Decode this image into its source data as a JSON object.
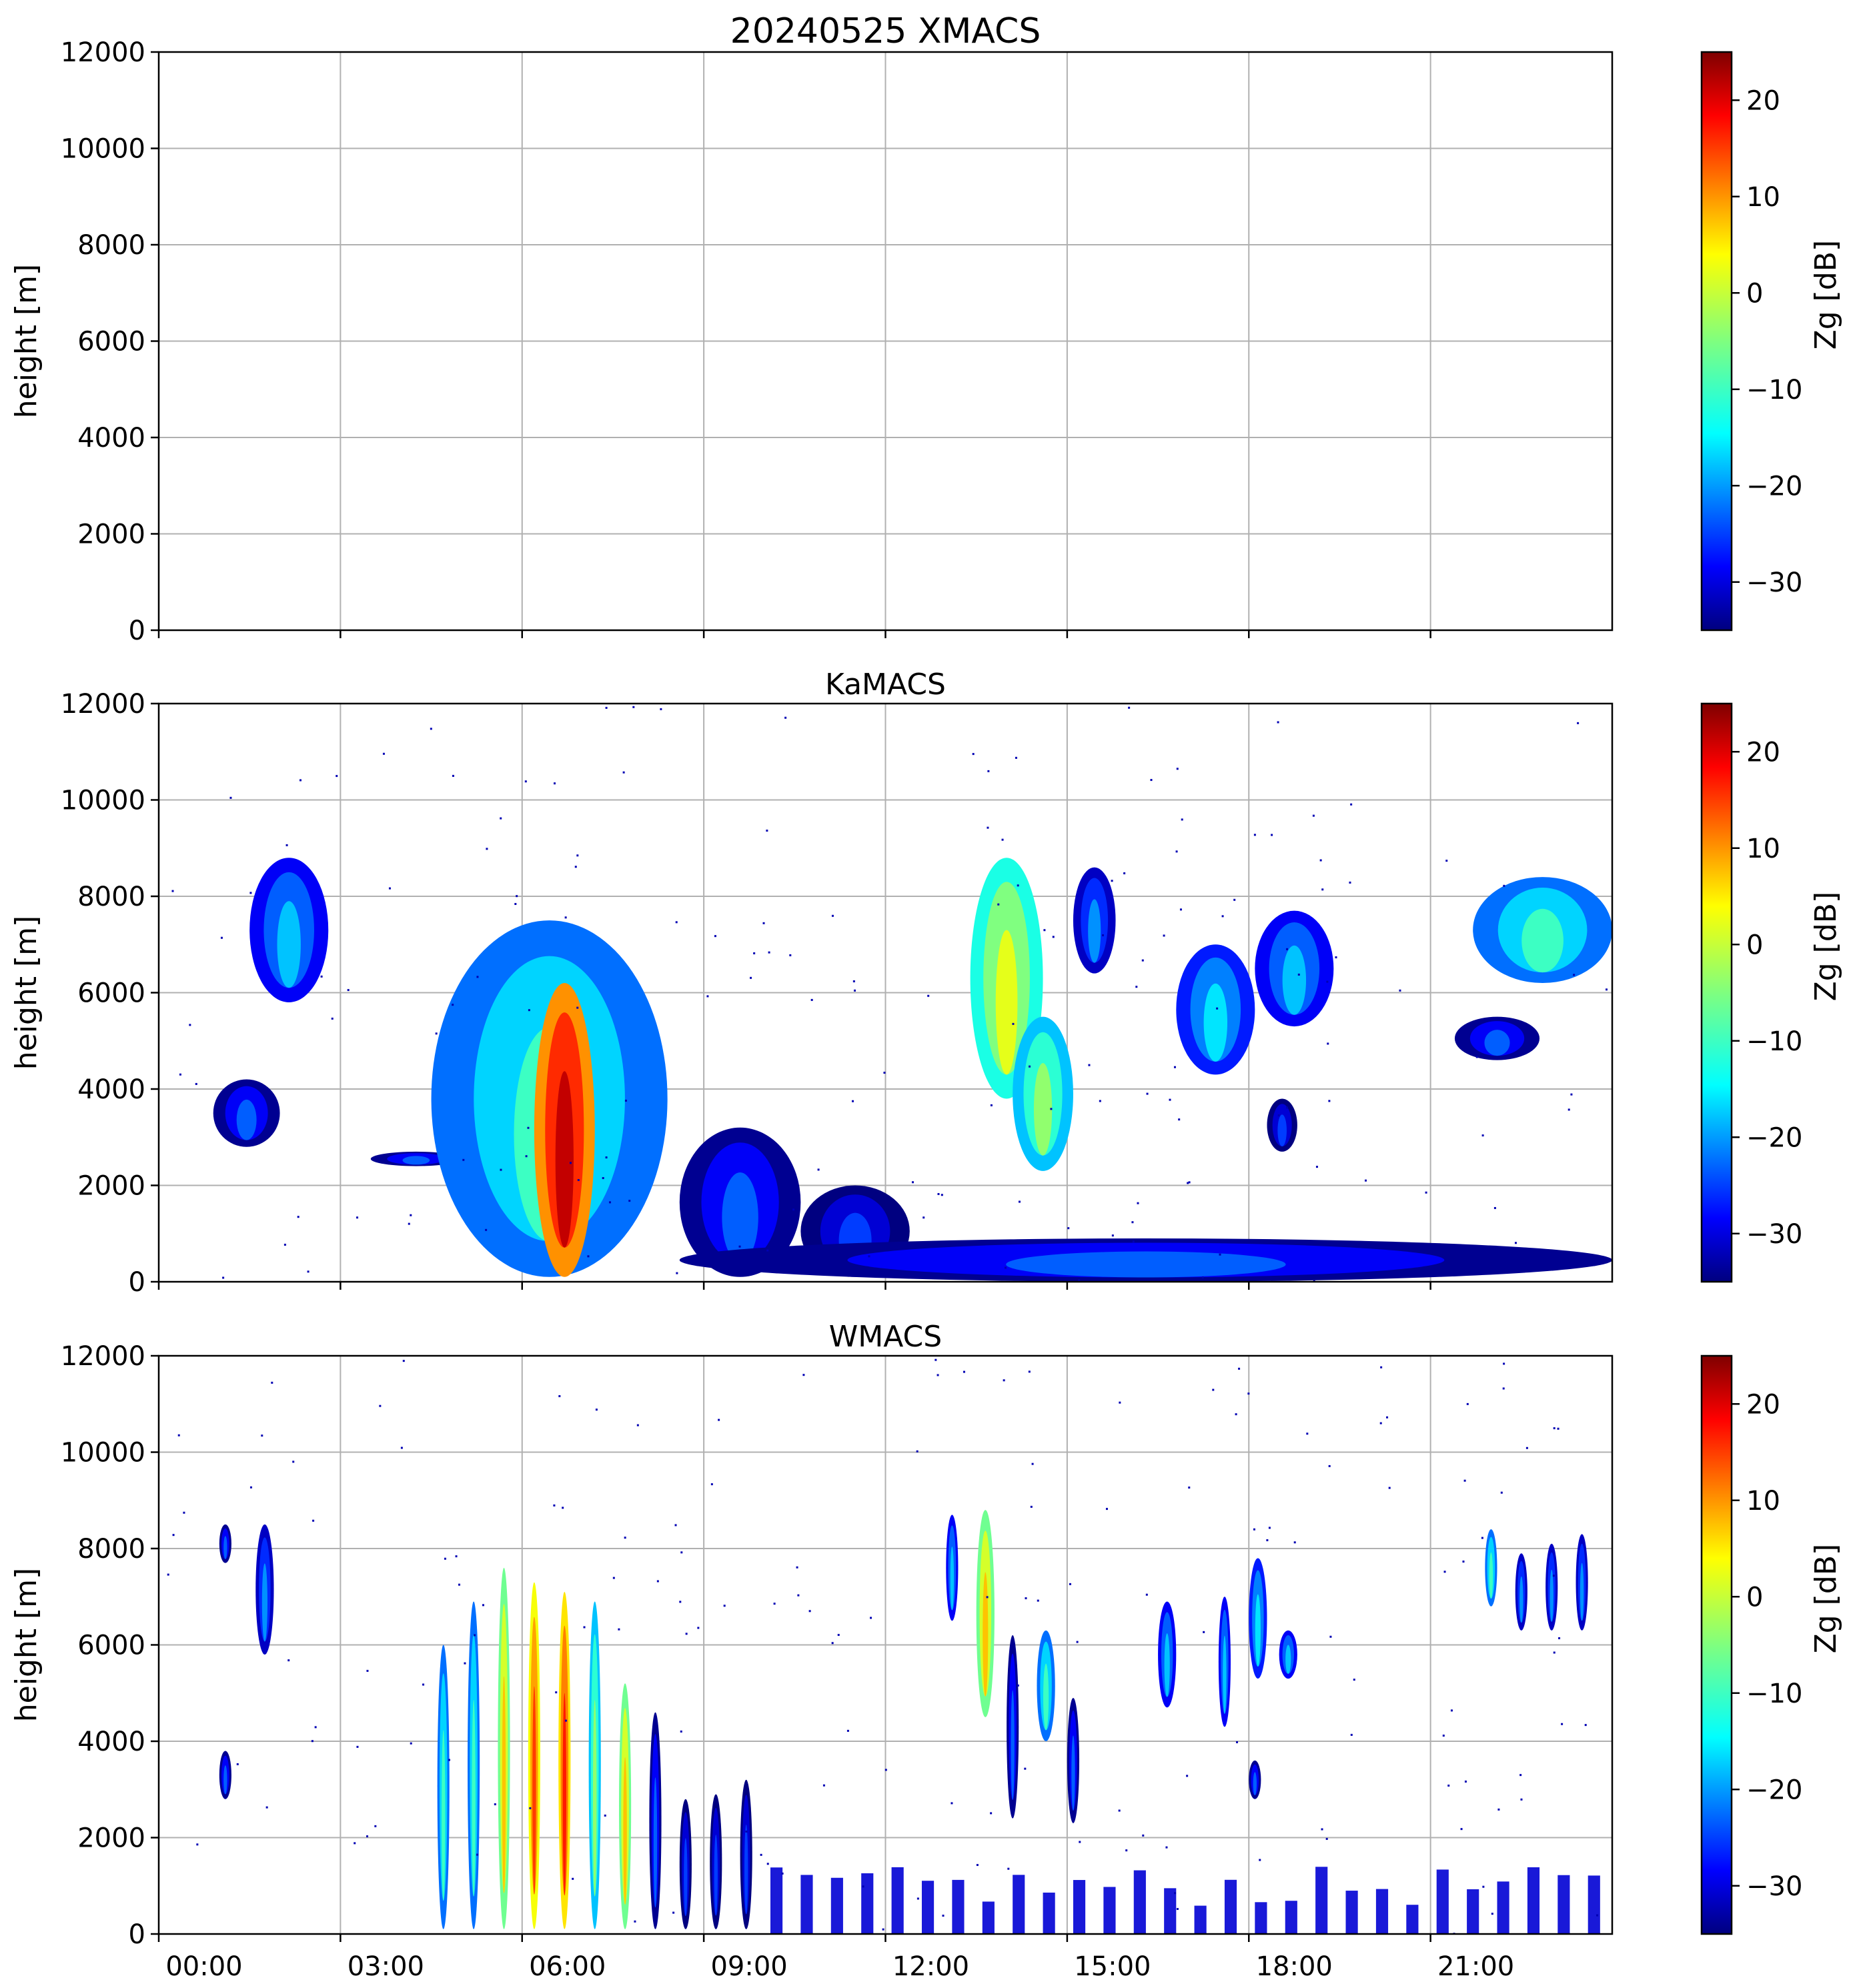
{
  "chart_data": [
    {
      "type": "heatmap",
      "title": "20240525 XMACS",
      "ylabel": "height [m]",
      "xlabel": "",
      "ylim": [
        0,
        12000
      ],
      "xlim_hours": [
        0,
        24
      ],
      "yticks": [
        "0",
        "2000",
        "4000",
        "6000",
        "8000",
        "10000",
        "12000"
      ],
      "xtick_hours": [
        0,
        3,
        6,
        9,
        12,
        15,
        18,
        21
      ],
      "xtick_labels": [],
      "grid": true,
      "colorbar": {
        "label": "Zg [dB]",
        "range": [
          -35,
          25
        ],
        "ticks": [
          "−30",
          "−20",
          "−10",
          "0",
          "10",
          "20"
        ],
        "tick_values": [
          -30,
          -20,
          -10,
          0,
          10,
          20
        ],
        "colormap": "jet"
      },
      "echoes": []
    },
    {
      "type": "heatmap",
      "title": "KaMACS",
      "ylabel": "height [m]",
      "xlabel": "",
      "ylim": [
        0,
        12000
      ],
      "xlim_hours": [
        0,
        24
      ],
      "yticks": [
        "0",
        "2000",
        "4000",
        "6000",
        "8000",
        "10000",
        "12000"
      ],
      "xtick_hours": [
        0,
        3,
        6,
        9,
        12,
        15,
        18,
        21
      ],
      "xtick_labels": [],
      "grid": true,
      "colorbar": {
        "label": "Zg [dB]",
        "range": [
          -35,
          25
        ],
        "ticks": [
          "−30",
          "−20",
          "−10",
          "0",
          "10",
          "20"
        ],
        "tick_values": [
          -30,
          -20,
          -10,
          0,
          10,
          20
        ],
        "colormap": "jet"
      },
      "echoes": [
        {
          "t0": 1.5,
          "t1": 2.8,
          "h0": 5800,
          "h1": 8800,
          "z": -22
        },
        {
          "t0": 0.9,
          "t1": 2.0,
          "h0": 2800,
          "h1": 4200,
          "z": -28
        },
        {
          "t0": 3.5,
          "t1": 5.0,
          "h0": 2400,
          "h1": 2700,
          "z": -28
        },
        {
          "t0": 4.5,
          "t1": 8.4,
          "h0": 100,
          "h1": 7500,
          "z": -15
        },
        {
          "t0": 6.2,
          "t1": 7.2,
          "h0": 100,
          "h1": 6200,
          "z": 15
        },
        {
          "t0": 8.6,
          "t1": 10.6,
          "h0": 100,
          "h1": 3200,
          "z": -28
        },
        {
          "t0": 10.6,
          "t1": 12.4,
          "h0": 100,
          "h1": 2000,
          "z": -30
        },
        {
          "t0": 8.6,
          "t1": 24.0,
          "h0": 0,
          "h1": 900,
          "z": -28
        },
        {
          "t0": 13.4,
          "t1": 14.6,
          "h0": 3800,
          "h1": 8800,
          "z": -5
        },
        {
          "t0": 14.1,
          "t1": 15.1,
          "h0": 2300,
          "h1": 5500,
          "z": -10
        },
        {
          "t0": 15.1,
          "t1": 15.8,
          "h0": 6400,
          "h1": 8600,
          "z": -25
        },
        {
          "t0": 16.8,
          "t1": 18.1,
          "h0": 4300,
          "h1": 7000,
          "z": -20
        },
        {
          "t0": 18.1,
          "t1": 19.4,
          "h0": 5300,
          "h1": 7700,
          "z": -22
        },
        {
          "t0": 18.3,
          "t1": 18.8,
          "h0": 2700,
          "h1": 3800,
          "z": -30
        },
        {
          "t0": 21.7,
          "t1": 24.0,
          "h0": 6200,
          "h1": 8400,
          "z": -15
        },
        {
          "t0": 21.4,
          "t1": 22.8,
          "h0": 4600,
          "h1": 5500,
          "z": -28
        }
      ]
    },
    {
      "type": "heatmap",
      "title": "WMACS",
      "ylabel": "height [m]",
      "xlabel": "",
      "ylim": [
        0,
        12000
      ],
      "xlim_hours": [
        0,
        24
      ],
      "yticks": [
        "0",
        "2000",
        "4000",
        "6000",
        "8000",
        "10000",
        "12000"
      ],
      "xtick_hours": [
        0,
        3,
        6,
        9,
        12,
        15,
        18,
        21
      ],
      "xtick_labels": [
        "00:00",
        "03:00",
        "06:00",
        "09:00",
        "12:00",
        "15:00",
        "18:00",
        "21:00"
      ],
      "grid": true,
      "colorbar": {
        "label": "Zg [dB]",
        "range": [
          -35,
          25
        ],
        "ticks": [
          "−30",
          "−20",
          "−10",
          "0",
          "10",
          "20"
        ],
        "tick_values": [
          -30,
          -20,
          -10,
          0,
          10,
          20
        ],
        "colormap": "jet"
      },
      "echoes": [
        {
          "t0": 1.6,
          "t1": 1.9,
          "h0": 5800,
          "h1": 8500,
          "z": -25
        },
        {
          "t0": 1.0,
          "t1": 1.2,
          "h0": 7700,
          "h1": 8500,
          "z": -28
        },
        {
          "t0": 1.0,
          "t1": 1.2,
          "h0": 2800,
          "h1": 3800,
          "z": -28
        },
        {
          "t0": 4.6,
          "t1": 4.8,
          "h0": 100,
          "h1": 6000,
          "z": -15
        },
        {
          "t0": 5.1,
          "t1": 5.3,
          "h0": 100,
          "h1": 6900,
          "z": -15
        },
        {
          "t0": 5.6,
          "t1": 5.8,
          "h0": 100,
          "h1": 7600,
          "z": 0
        },
        {
          "t0": 6.1,
          "t1": 6.3,
          "h0": 100,
          "h1": 7300,
          "z": 8
        },
        {
          "t0": 6.6,
          "t1": 6.8,
          "h0": 100,
          "h1": 7100,
          "z": 10
        },
        {
          "t0": 7.1,
          "t1": 7.3,
          "h0": 100,
          "h1": 6900,
          "z": -10
        },
        {
          "t0": 7.6,
          "t1": 7.8,
          "h0": 100,
          "h1": 5200,
          "z": 0
        },
        {
          "t0": 8.1,
          "t1": 8.3,
          "h0": 100,
          "h1": 4600,
          "z": -28
        },
        {
          "t0": 8.6,
          "t1": 8.8,
          "h0": 100,
          "h1": 2800,
          "z": -30
        },
        {
          "t0": 9.1,
          "t1": 9.3,
          "h0": 100,
          "h1": 2900,
          "z": -30
        },
        {
          "t0": 9.6,
          "t1": 9.8,
          "h0": 100,
          "h1": 3200,
          "z": -30
        },
        {
          "t0": 13.5,
          "t1": 13.8,
          "h0": 4500,
          "h1": 8800,
          "z": 0
        },
        {
          "t0": 13.0,
          "t1": 13.2,
          "h0": 6500,
          "h1": 8700,
          "z": -22
        },
        {
          "t0": 14.5,
          "t1": 14.8,
          "h0": 4000,
          "h1": 6300,
          "z": -15
        },
        {
          "t0": 14.0,
          "t1": 14.2,
          "h0": 2400,
          "h1": 6200,
          "z": -28
        },
        {
          "t0": 15.0,
          "t1": 15.2,
          "h0": 2300,
          "h1": 4900,
          "z": -28
        },
        {
          "t0": 16.5,
          "t1": 16.8,
          "h0": 4700,
          "h1": 6900,
          "z": -22
        },
        {
          "t0": 17.5,
          "t1": 17.7,
          "h0": 4300,
          "h1": 7000,
          "z": -22
        },
        {
          "t0": 18.0,
          "t1": 18.3,
          "h0": 5300,
          "h1": 7800,
          "z": -20
        },
        {
          "t0": 18.5,
          "t1": 18.8,
          "h0": 5300,
          "h1": 6300,
          "z": -22
        },
        {
          "t0": 18.0,
          "t1": 18.2,
          "h0": 2800,
          "h1": 3600,
          "z": -28
        },
        {
          "t0": 21.9,
          "t1": 22.1,
          "h0": 6800,
          "h1": 8400,
          "z": -15
        },
        {
          "t0": 22.4,
          "t1": 22.6,
          "h0": 6300,
          "h1": 7900,
          "z": -25
        },
        {
          "t0": 22.9,
          "t1": 23.1,
          "h0": 6300,
          "h1": 8100,
          "z": -25
        },
        {
          "t0": 23.4,
          "t1": 23.6,
          "h0": 6300,
          "h1": 8300,
          "z": -25
        },
        {
          "t0": 10.1,
          "t1": 24.0,
          "h0": 0,
          "h1": 1400,
          "z": -30,
          "striped": true
        }
      ]
    }
  ]
}
